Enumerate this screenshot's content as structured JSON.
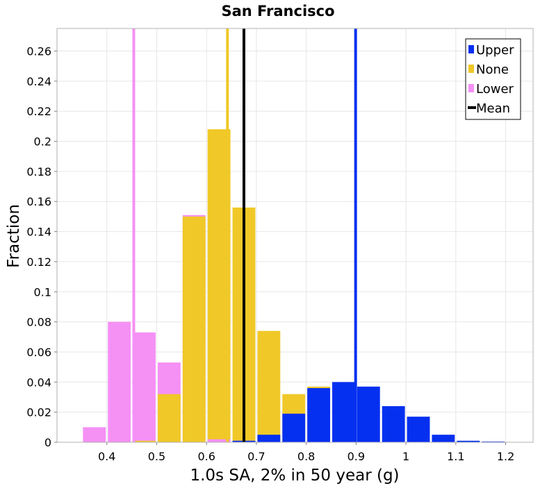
{
  "chart_data": {
    "type": "bar",
    "title": "San Francisco",
    "xlabel": "1.0s SA, 2% in 50 year (g)",
    "ylabel": "Fraction",
    "xlim": [
      0.3,
      1.255
    ],
    "ylim": [
      0,
      0.275
    ],
    "x_ticks": [
      0.4,
      0.5,
      0.6,
      0.7,
      0.8,
      0.9,
      1.0,
      1.1,
      1.2
    ],
    "x_tick_labels": [
      "0.4",
      "0.5",
      "0.6",
      "0.7",
      "0.8",
      "0.9",
      "1",
      "1.1",
      "1.2"
    ],
    "y_ticks": [
      0,
      0.02,
      0.04,
      0.06,
      0.08,
      0.1,
      0.12,
      0.14,
      0.16,
      0.18,
      0.2,
      0.22,
      0.24,
      0.26
    ],
    "y_tick_labels": [
      "0",
      "0.02",
      "0.04",
      "0.06",
      "0.08",
      "0.1",
      "0.12",
      "0.14",
      "0.16",
      "0.18",
      "0.2",
      "0.22",
      "0.24",
      "0.26"
    ],
    "bin_width": 0.05,
    "grid": true,
    "legend_position": "top-right",
    "series": [
      {
        "name": "Lower",
        "color": "#f590f5",
        "bins": [
          {
            "x": 0.375,
            "y": 0.01
          },
          {
            "x": 0.425,
            "y": 0.08
          },
          {
            "x": 0.475,
            "y": 0.073
          },
          {
            "x": 0.525,
            "y": 0.053
          },
          {
            "x": 0.575,
            "y": 0.151
          },
          {
            "x": 0.625,
            "y": 0.002
          },
          {
            "x": 0.675,
            "y": 0.001
          }
        ]
      },
      {
        "name": "None",
        "color": "#f0c828",
        "bins": [
          {
            "x": 0.475,
            "y": 0.001
          },
          {
            "x": 0.525,
            "y": 0.032
          },
          {
            "x": 0.575,
            "y": 0.15
          },
          {
            "x": 0.625,
            "y": 0.208
          },
          {
            "x": 0.675,
            "y": 0.156
          },
          {
            "x": 0.725,
            "y": 0.074
          },
          {
            "x": 0.775,
            "y": 0.032
          },
          {
            "x": 0.825,
            "y": 0.037
          }
        ]
      },
      {
        "name": "Upper",
        "color": "#0530f0",
        "bins": [
          {
            "x": 0.675,
            "y": 0.001
          },
          {
            "x": 0.725,
            "y": 0.005
          },
          {
            "x": 0.775,
            "y": 0.019
          },
          {
            "x": 0.825,
            "y": 0.036
          },
          {
            "x": 0.875,
            "y": 0.04
          },
          {
            "x": 0.925,
            "y": 0.037
          },
          {
            "x": 0.975,
            "y": 0.024
          },
          {
            "x": 1.025,
            "y": 0.017
          },
          {
            "x": 1.075,
            "y": 0.005
          },
          {
            "x": 1.125,
            "y": 0.001
          },
          {
            "x": 1.175,
            "y": 0.0005
          }
        ]
      }
    ],
    "mean_lines": [
      {
        "name": "Lower",
        "x": 0.454,
        "color": "#f590f5"
      },
      {
        "name": "None",
        "x": 0.642,
        "color": "#f0c828"
      },
      {
        "name": "Mean",
        "x": 0.675,
        "color": "#000000"
      },
      {
        "name": "Upper",
        "x": 0.899,
        "color": "#0530f0"
      }
    ],
    "legend": [
      {
        "label": "Upper",
        "color": "#0530f0",
        "style": "box"
      },
      {
        "label": "None",
        "color": "#f0c828",
        "style": "box"
      },
      {
        "label": "Lower",
        "color": "#f590f5",
        "style": "box"
      },
      {
        "label": "Mean",
        "color": "#000000",
        "style": "line"
      }
    ]
  }
}
